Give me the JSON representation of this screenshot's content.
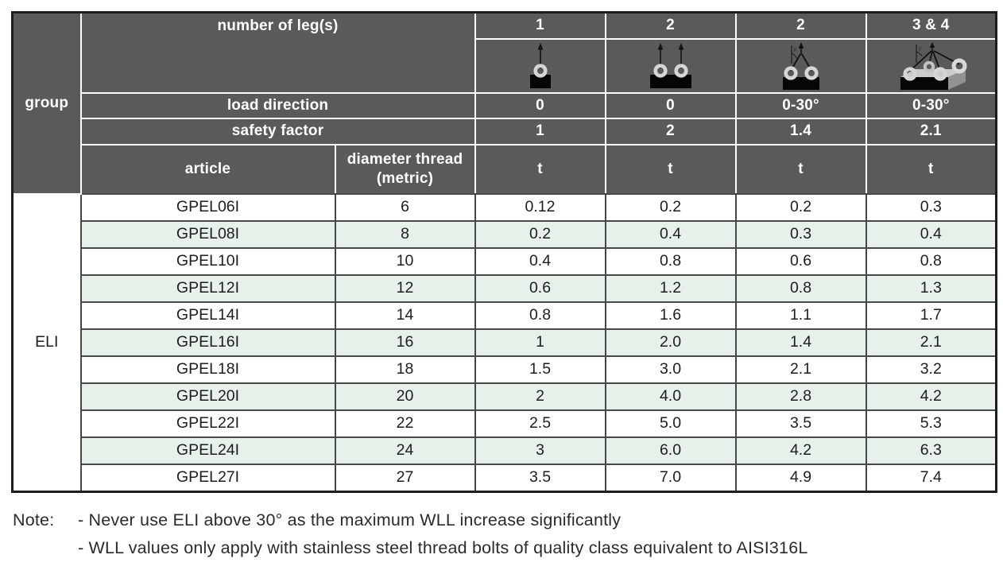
{
  "table": {
    "group_label": "group",
    "group_value": "ELI",
    "header": {
      "number_of_legs_label": "number of leg(s)",
      "load_direction_label": "load direction",
      "safety_factor_label": "safety factor",
      "article_label": "article",
      "diameter_label": "diameter thread (metric)",
      "columns": [
        {
          "legs": "1",
          "icon": "one-leg-vertical-sling",
          "load_direction": "0",
          "safety_factor": "1",
          "unit": "t"
        },
        {
          "legs": "2",
          "icon": "two-leg-vertical-sling",
          "load_direction": "0",
          "safety_factor": "2",
          "unit": "t"
        },
        {
          "legs": "2",
          "icon": "two-leg-angled-sling",
          "load_direction": "0-30°",
          "safety_factor": "1.4",
          "unit": "t"
        },
        {
          "legs": "3 & 4",
          "icon": "three-four-leg-angled-sling",
          "load_direction": "0-30°",
          "safety_factor": "2.1",
          "unit": "t"
        }
      ]
    },
    "rows": [
      {
        "article": "GPEL06I",
        "diameter": "6",
        "values": [
          "0.12",
          "0.2",
          "0.2",
          "0.3"
        ]
      },
      {
        "article": "GPEL08I",
        "diameter": "8",
        "values": [
          "0.2",
          "0.4",
          "0.3",
          "0.4"
        ]
      },
      {
        "article": "GPEL10I",
        "diameter": "10",
        "values": [
          "0.4",
          "0.8",
          "0.6",
          "0.8"
        ]
      },
      {
        "article": "GPEL12I",
        "diameter": "12",
        "values": [
          "0.6",
          "1.2",
          "0.8",
          "1.3"
        ]
      },
      {
        "article": "GPEL14I",
        "diameter": "14",
        "values": [
          "0.8",
          "1.6",
          "1.1",
          "1.7"
        ]
      },
      {
        "article": "GPEL16I",
        "diameter": "16",
        "values": [
          "1",
          "2.0",
          "1.4",
          "2.1"
        ]
      },
      {
        "article": "GPEL18I",
        "diameter": "18",
        "values": [
          "1.5",
          "3.0",
          "2.1",
          "3.2"
        ]
      },
      {
        "article": "GPEL20I",
        "diameter": "20",
        "values": [
          "2",
          "4.0",
          "2.8",
          "4.2"
        ]
      },
      {
        "article": "GPEL22I",
        "diameter": "22",
        "values": [
          "2.5",
          "5.0",
          "3.5",
          "5.3"
        ]
      },
      {
        "article": "GPEL24I",
        "diameter": "24",
        "values": [
          "3",
          "6.0",
          "4.2",
          "6.3"
        ]
      },
      {
        "article": "GPEL27I",
        "diameter": "27",
        "values": [
          "3.5",
          "7.0",
          "4.9",
          "7.4"
        ]
      }
    ]
  },
  "note": {
    "label": "Note:",
    "items": [
      "- Never use ELI above 30° as the maximum WLL increase significantly",
      "- WLL values only apply with stainless steel thread bolts of quality class equivalent to AISI316L"
    ]
  },
  "colors": {
    "header_bg": "#595a5c",
    "header_text": "#ffffff",
    "row_green": "#e8f1e9",
    "row_white": "#ffffff",
    "grid_dark": "#474747",
    "outer_border": "#1c1c1c",
    "note_text": "#2b2b2b"
  }
}
